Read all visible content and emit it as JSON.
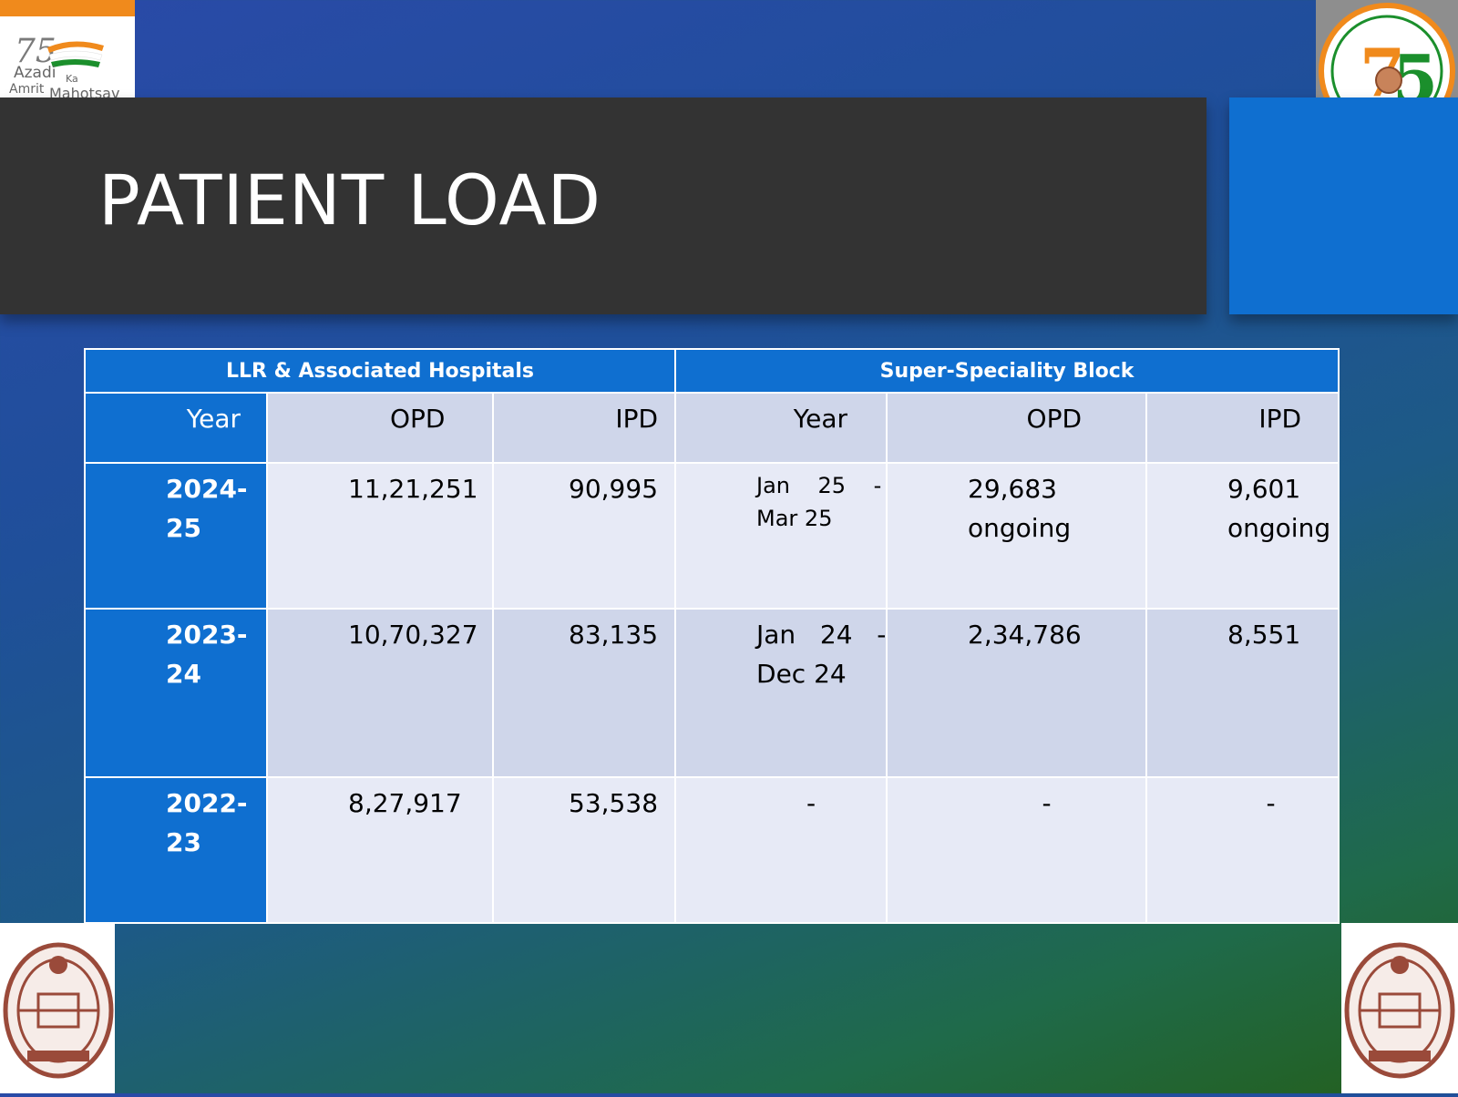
{
  "slide": {
    "title": "PATIENT LOAD"
  },
  "logos": {
    "top_left_text_1": "Azadi",
    "top_left_text_2": "Ka",
    "top_left_text_3": "Amrit",
    "top_left_text_4": "Mahotsav"
  },
  "table": {
    "groups": [
      "LLR & Associated Hospitals",
      "Super-Speciality Block"
    ],
    "headers": [
      "Year",
      "OPD",
      "IPD",
      "Year",
      "OPD",
      "IPD"
    ],
    "rows": [
      {
        "year_1": "2024-",
        "year_2": "25",
        "opd": "11,21,251",
        "ipd": "90,995",
        "ssb_year_1": "Jan    25    -",
        "ssb_year_2": "Mar 25",
        "ssb_opd_1": "29,683",
        "ssb_opd_2": "ongoing",
        "ssb_ipd_1": "9,601",
        "ssb_ipd_2": "ongoing"
      },
      {
        "year_1": "2023-",
        "year_2": "24",
        "opd": "10,70,327",
        "ipd": "83,135",
        "ssb_year_1": "Jan   24   -",
        "ssb_year_2": "Dec 24",
        "ssb_opd_1": "2,34,786",
        "ssb_opd_2": "",
        "ssb_ipd_1": "8,551",
        "ssb_ipd_2": ""
      },
      {
        "year_1": "2022-",
        "year_2": "23",
        "opd": "8,27,917",
        "ipd": "53,538",
        "ssb_year_1": "-",
        "ssb_year_2": "",
        "ssb_opd_1": "-",
        "ssb_opd_2": "",
        "ssb_ipd_1": "-",
        "ssb_ipd_2": ""
      }
    ]
  }
}
